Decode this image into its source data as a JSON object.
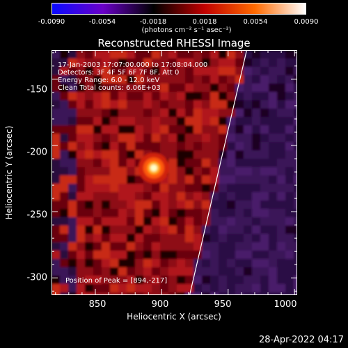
{
  "colorbar": {
    "labels": [
      "-0.0090",
      "-0.0054",
      "-0.0018",
      "0.0018",
      "0.0054",
      "0.0090"
    ],
    "unit": "(photons cm⁻² s⁻¹ asec⁻²)",
    "colors": [
      "#0a0aff",
      "#6a00c8",
      "#000000",
      "#c00000",
      "#ff6a00",
      "#ffffff"
    ]
  },
  "plot": {
    "title": "Reconstructed RHESSI Image",
    "info": [
      "17-Jan-2003 17:07:00.000 to 17:08:04.000",
      "Detectors: 3F 4F 5F 6F 7F 8F, Att 0",
      "Energy Range: 6.0 - 12.0 keV",
      "Clean     Total counts: 6.06E+03"
    ],
    "peak_label": "Position of Peak = [894,-217]"
  },
  "chart_data": {
    "type": "heatmap",
    "title": "Reconstructed RHESSI Image",
    "xlabel": "Heliocentric X (arcsec)",
    "ylabel": "Heliocentric Y (arcsec)",
    "xlim": [
      817,
      1002
    ],
    "ylim": [
      -313,
      -128
    ],
    "x_ticks": [
      "850",
      "900",
      "950",
      "1000"
    ],
    "y_ticks": [
      "-150",
      "-200",
      "-250",
      "-300"
    ],
    "x_tick_values": [
      850,
      900,
      950,
      1000
    ],
    "y_tick_values": [
      -150,
      -200,
      -250,
      -300
    ],
    "color_range": [
      -0.009,
      0.009
    ],
    "peak": [
      894,
      -217
    ],
    "limb_line": [
      [
        964,
        -128
      ],
      [
        921,
        -313
      ]
    ]
  },
  "footer": {
    "timestamp": "28-Apr-2022 04:17"
  }
}
